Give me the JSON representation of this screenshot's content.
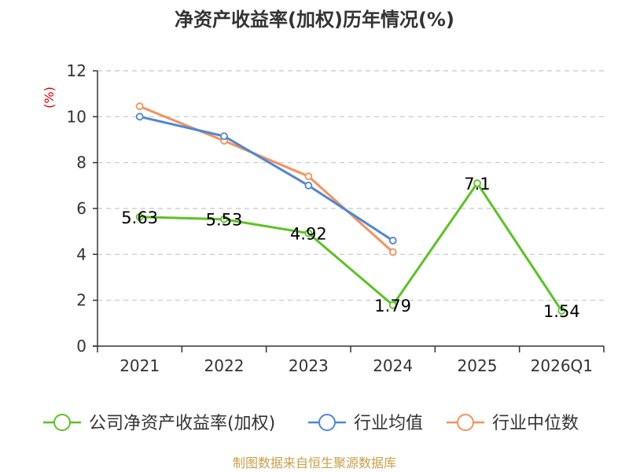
{
  "chart_data": {
    "type": "line",
    "title": "净资产收益率(加权)历年情况(%)",
    "ylabel": "(%)",
    "xlabel": "",
    "ylim": [
      0,
      12
    ],
    "yticks": [
      0,
      2,
      4,
      6,
      8,
      10,
      12
    ],
    "grid": true,
    "legend_position": "bottom",
    "categories": [
      "2021",
      "2022",
      "2023",
      "2024",
      "2025",
      "2026Q1"
    ],
    "series": [
      {
        "name": "公司净资产收益率(加权)",
        "color": "#5bc322",
        "values": [
          5.63,
          5.53,
          4.92,
          1.79,
          7.1,
          1.54
        ],
        "labels": [
          "5.63",
          "5.53",
          "4.92",
          "1.79",
          "7.1",
          "1.54"
        ]
      },
      {
        "name": "行业均值",
        "color": "#4f86d8",
        "values": [
          10.0,
          9.15,
          7.0,
          4.6,
          null,
          null
        ]
      },
      {
        "name": "行业中位数",
        "color": "#f4925a",
        "values": [
          10.45,
          8.95,
          7.4,
          4.1,
          null,
          null
        ]
      }
    ],
    "source": "制图数据来自恒生聚源数据库"
  }
}
